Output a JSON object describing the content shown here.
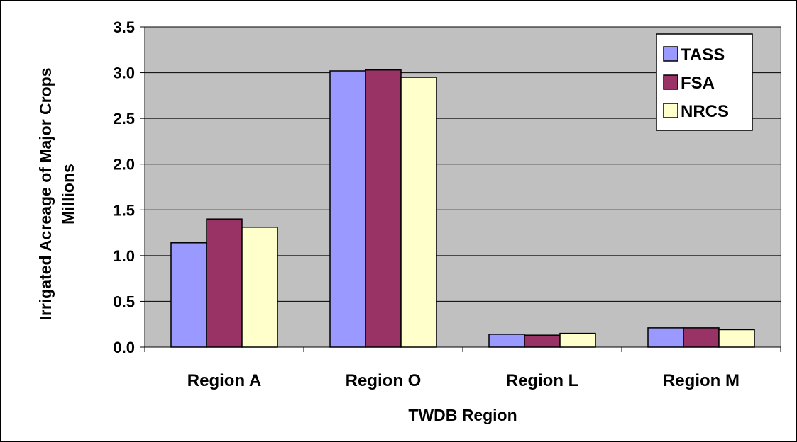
{
  "chart_data": {
    "type": "bar",
    "categories": [
      "Region A",
      "Region O",
      "Region L",
      "Region M"
    ],
    "series": [
      {
        "name": "TASS",
        "values": [
          1.14,
          3.02,
          0.14,
          0.21
        ],
        "color": "#9999ff"
      },
      {
        "name": "FSA",
        "values": [
          1.4,
          3.03,
          0.13,
          0.21
        ],
        "color": "#993366"
      },
      {
        "name": "NRCS",
        "values": [
          1.31,
          2.95,
          0.15,
          0.19
        ],
        "color": "#ffffcc"
      }
    ],
    "title": "",
    "xlabel": "TWDB Region",
    "ylabel": "Irrigated Acreage of Major Crops",
    "ylabel_units": "Millions",
    "ylim": [
      0,
      3.5
    ],
    "yticks": [
      "0.0",
      "0.5",
      "1.0",
      "1.5",
      "2.0",
      "2.5",
      "3.0",
      "3.5"
    ],
    "grid": true,
    "legend_position": "top-right",
    "plot_background": "#c0c0c0"
  }
}
